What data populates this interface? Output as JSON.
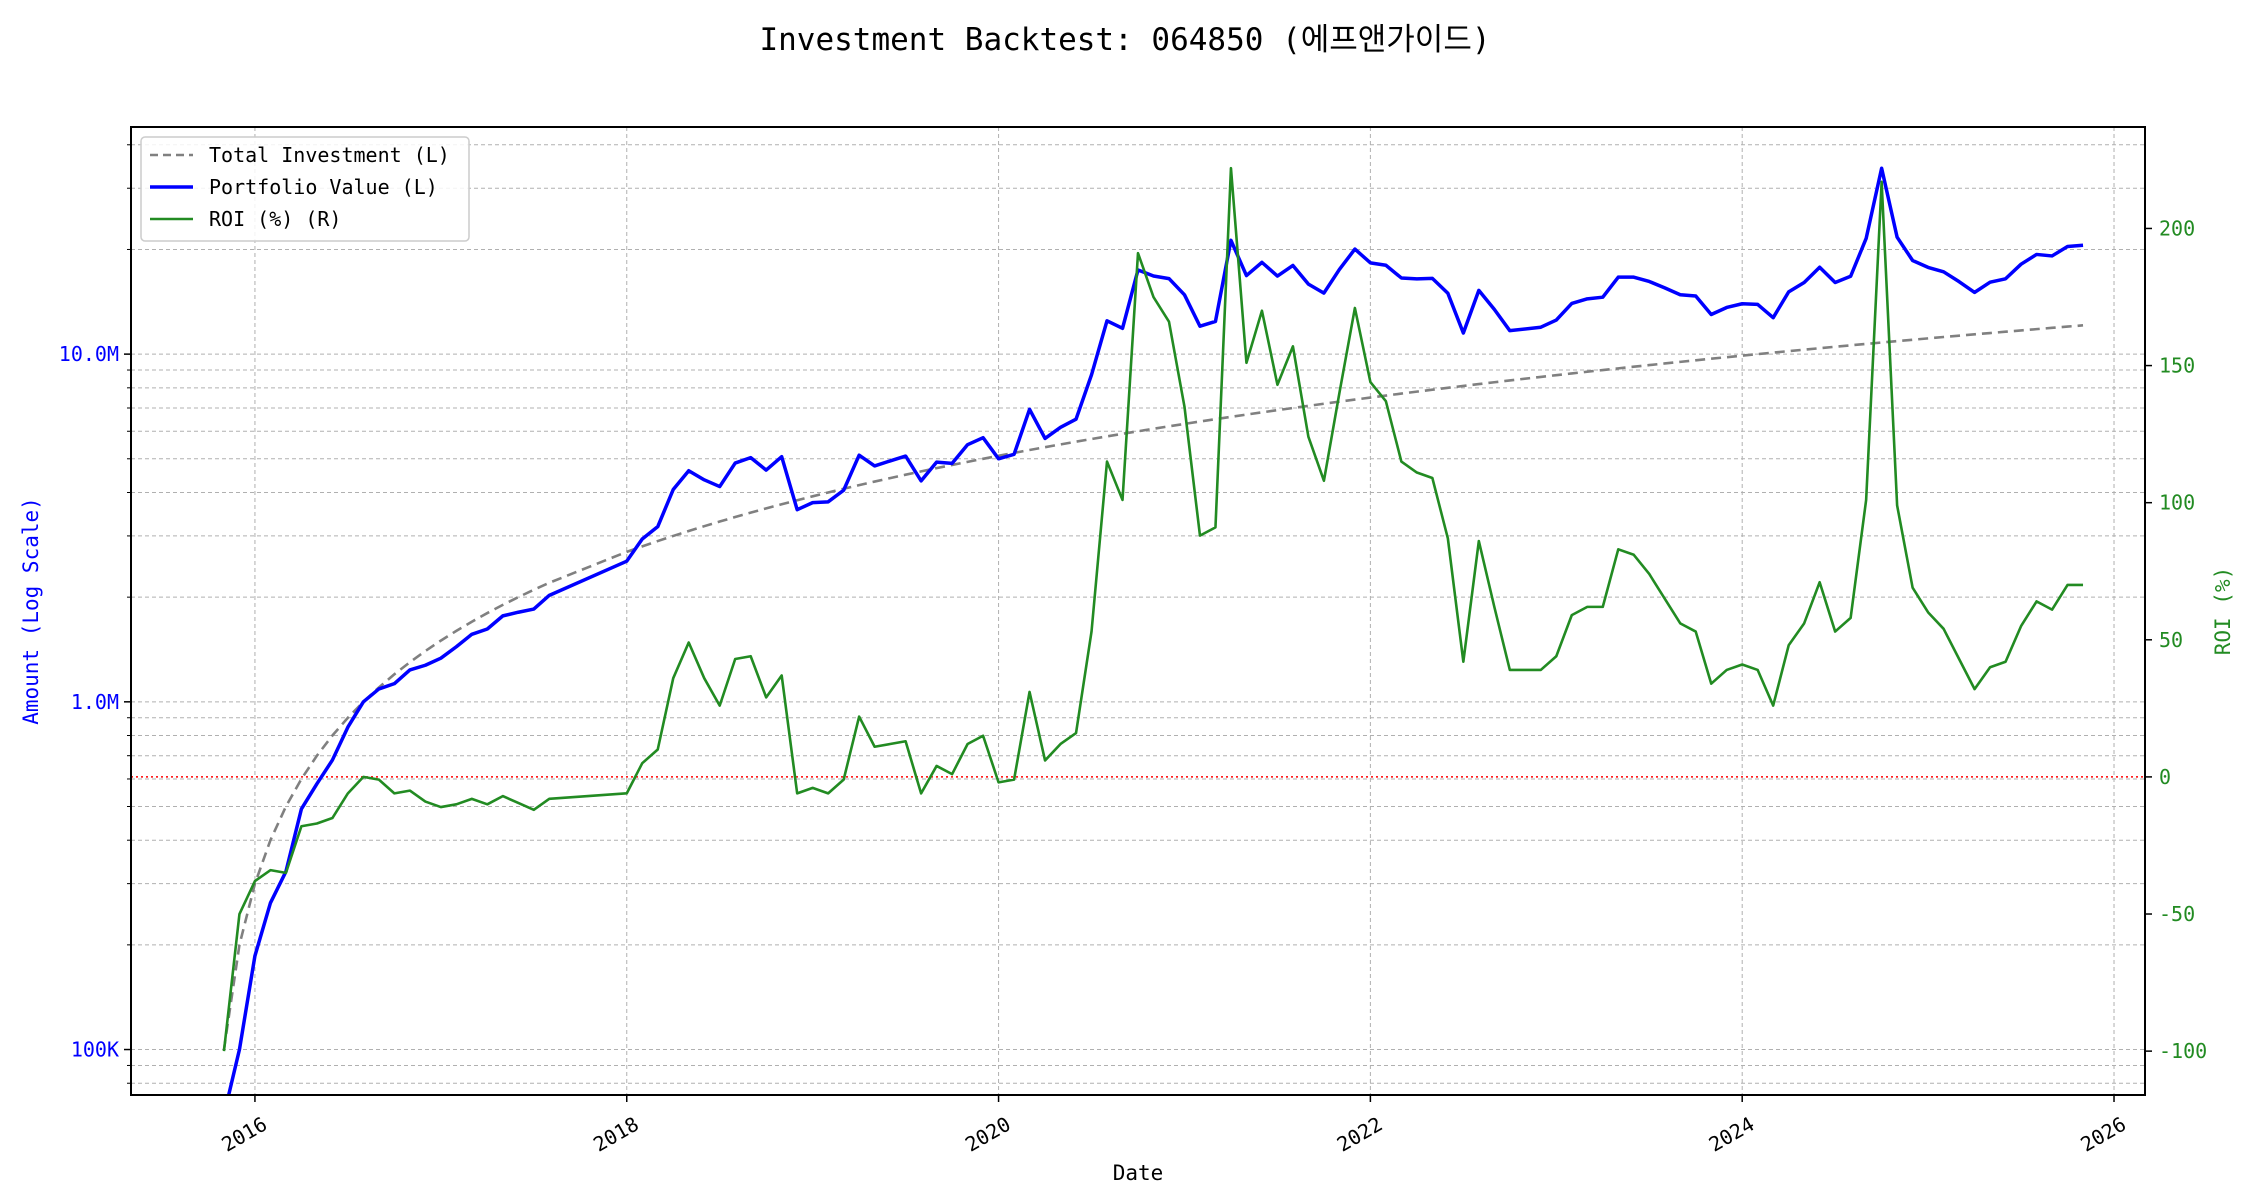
{
  "chart_data": {
    "type": "line",
    "title": "Investment Backtest: 064850 (에프앤가이드)",
    "xlabel": "Date",
    "ylabel_left": "Amount (Log Scale)",
    "ylabel_right": "ROI (%)",
    "left_scale": "log",
    "ylim_left": [
      74000,
      45000000
    ],
    "ylim_right": [
      -116,
      237
    ],
    "xlim": [
      "2015-05",
      "2026-03"
    ],
    "grid": true,
    "legend_position": "top-left",
    "x_ticks": [
      "2016",
      "2018",
      "2020",
      "2022",
      "2024",
      "2026"
    ],
    "y_ticks_left": [
      {
        "value": 100000,
        "label": "100K"
      },
      {
        "value": 1000000,
        "label": "1.0M"
      },
      {
        "value": 10000000,
        "label": "10.0M"
      }
    ],
    "y_ticks_right": [
      -100,
      -50,
      0,
      50,
      100,
      150,
      200
    ],
    "reference_line": {
      "axis": "right",
      "value": 0,
      "color": "#ff0000",
      "style": "dotted"
    },
    "dates": [
      "2015-11",
      "2015-12",
      "2016-01",
      "2016-02",
      "2016-03",
      "2016-04",
      "2016-05",
      "2016-06",
      "2016-07",
      "2016-08",
      "2016-09",
      "2016-10",
      "2016-11",
      "2016-12",
      "2017-01",
      "2017-02",
      "2017-03",
      "2017-04",
      "2017-05",
      "2017-06",
      "2017-07",
      "2017-08",
      "2018-01",
      "2018-02",
      "2018-03",
      "2018-04",
      "2018-05",
      "2018-06",
      "2018-07",
      "2018-08",
      "2018-09",
      "2018-10",
      "2018-11",
      "2018-12",
      "2019-01",
      "2019-02",
      "2019-03",
      "2019-04",
      "2019-05",
      "2019-06",
      "2019-07",
      "2019-08",
      "2019-09",
      "2019-10",
      "2019-11",
      "2019-12",
      "2020-01",
      "2020-02",
      "2020-03",
      "2020-04",
      "2020-05",
      "2020-06",
      "2020-07",
      "2020-08",
      "2020-09",
      "2020-10",
      "2020-11",
      "2020-12",
      "2021-01",
      "2021-02",
      "2021-03",
      "2021-04",
      "2021-05",
      "2021-06",
      "2021-07",
      "2021-08",
      "2021-09",
      "2021-10",
      "2021-11",
      "2021-12",
      "2022-01",
      "2022-02",
      "2022-03",
      "2022-04",
      "2022-05",
      "2022-06",
      "2022-07",
      "2022-08",
      "2022-09",
      "2022-10",
      "2022-12",
      "2023-01",
      "2023-02",
      "2023-03",
      "2023-04",
      "2023-05",
      "2023-06",
      "2023-07",
      "2023-08",
      "2023-09",
      "2023-10",
      "2023-11",
      "2023-12",
      "2024-01",
      "2024-02",
      "2024-03",
      "2024-04",
      "2024-05",
      "2024-06",
      "2024-07",
      "2024-08",
      "2024-09",
      "2024-10",
      "2024-11",
      "2024-12",
      "2025-01",
      "2025-02",
      "2025-03",
      "2025-04",
      "2025-05",
      "2025-06",
      "2025-07",
      "2025-08",
      "2025-09",
      "2025-10",
      "2025-11"
    ],
    "series": [
      {
        "name": "Total Investment (L)",
        "axis": "left",
        "color": "#808080",
        "style": "dashed",
        "values": [
          100000,
          200000,
          300000,
          400000,
          500000,
          600000,
          700000,
          800000,
          900000,
          1000000,
          1100000,
          1200000,
          1300000,
          1400000,
          1500000,
          1600000,
          1700000,
          1800000,
          1900000,
          2000000,
          2100000,
          2200000,
          2700000,
          2800000,
          2900000,
          3000000,
          3100000,
          3200000,
          3300000,
          3400000,
          3500000,
          3600000,
          3700000,
          3800000,
          3900000,
          4000000,
          4100000,
          4200000,
          4300000,
          4400000,
          4500000,
          4600000,
          4700000,
          4800000,
          4900000,
          5000000,
          5100000,
          5200000,
          5300000,
          5400000,
          5500000,
          5600000,
          5700000,
          5800000,
          5900000,
          6000000,
          6100000,
          6200000,
          6300000,
          6400000,
          6500000,
          6600000,
          6700000,
          6800000,
          6900000,
          7000000,
          7100000,
          7200000,
          7300000,
          7400000,
          7500000,
          7600000,
          7700000,
          7800000,
          7900000,
          8000000,
          8100000,
          8200000,
          8300000,
          8400000,
          8600000,
          8700000,
          8800000,
          8900000,
          9000000,
          9100000,
          9200000,
          9300000,
          9400000,
          9500000,
          9600000,
          9700000,
          9800000,
          9900000,
          10000000,
          10100000,
          10200000,
          10300000,
          10400000,
          10500000,
          10600000,
          10700000,
          10800000,
          10900000,
          11000000,
          11100000,
          11200000,
          11300000,
          11400000,
          11500000,
          11600000,
          11700000,
          11800000,
          11900000,
          12000000,
          12100000
        ]
      },
      {
        "name": "Portfolio Value (L)",
        "axis": "left",
        "color": "#0000ff",
        "style": "solid",
        "values": [
          0,
          100000,
          186000,
          264000,
          325000,
          492000,
          581000,
          680000,
          846000,
          1000000,
          1089000,
          1128000,
          1235000,
          1274000,
          1335000,
          1440000,
          1564000,
          1620000,
          1767000,
          1810000,
          1848000,
          2024000,
          2538000,
          2940000,
          3190000,
          4080000,
          4620000,
          4350000,
          4160000,
          4860000,
          5040000,
          4640000,
          5070000,
          3570000,
          3740000,
          3760000,
          4060000,
          5120000,
          4770000,
          4930000,
          5090000,
          4320000,
          4890000,
          4850000,
          5490000,
          5750000,
          5000000,
          5150000,
          6940000,
          5720000,
          6160000,
          6500000,
          8720000,
          12470000,
          11860000,
          17460000,
          16780000,
          16490000,
          14810000,
          12030000,
          12420000,
          21250000,
          16820000,
          18360000,
          16770000,
          17990000,
          15900000,
          14980000,
          17520000,
          20050000,
          18300000,
          18010000,
          16560000,
          16460000,
          16510000,
          14960000,
          11500000,
          15250000,
          13450000,
          11680000,
          11950000,
          12530000,
          13990000,
          14420000,
          14580000,
          16650000,
          16650000,
          16180000,
          15510000,
          14820000,
          14690000,
          13000000,
          13620000,
          13960000,
          13900000,
          12730000,
          15100000,
          16070000,
          17780000,
          16070000,
          16750000,
          21510000,
          34240000,
          21690000,
          18590000,
          17760000,
          17250000,
          16160000,
          15050000,
          16100000,
          16470000,
          18140000,
          19350000,
          19160000,
          20400000,
          20570000
        ]
      },
      {
        "name": "ROI (%) (R)",
        "axis": "right",
        "color": "#228b22",
        "style": "solid",
        "values": [
          -100,
          -50,
          -38,
          -34,
          -35,
          -18,
          -17,
          -15,
          -6,
          0,
          -1,
          -6,
          -5,
          -9,
          -11,
          -10,
          -8,
          -10,
          -7,
          -9.5,
          -12,
          -8,
          -6,
          5,
          10,
          36,
          49,
          36,
          26,
          43,
          44,
          29,
          37,
          -6,
          -4,
          -6,
          -1,
          22,
          11,
          12,
          13,
          -6,
          4,
          1,
          12,
          15,
          -2,
          -1,
          31,
          6,
          12,
          16,
          53,
          115,
          101,
          191,
          175,
          166,
          135,
          88,
          91,
          222,
          151,
          170,
          143,
          157,
          124,
          108,
          140,
          171,
          144,
          137,
          115,
          111,
          109,
          87,
          42,
          86,
          62,
          39,
          39,
          44,
          59,
          62,
          62,
          83,
          81,
          74,
          65,
          56,
          53,
          34,
          39,
          41,
          39,
          26,
          48,
          56,
          71,
          53,
          58,
          101,
          217,
          99,
          69,
          60,
          54,
          43,
          32,
          40,
          42,
          55,
          64,
          61,
          70,
          70
        ]
      }
    ]
  }
}
